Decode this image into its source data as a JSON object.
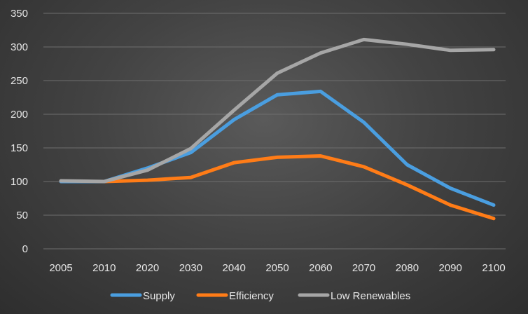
{
  "chart_data": {
    "type": "line",
    "title": "",
    "xlabel": "",
    "ylabel": "",
    "categories": [
      "2005",
      "2010",
      "2020",
      "2030",
      "2040",
      "2050",
      "2060",
      "2070",
      "2080",
      "2090",
      "2100"
    ],
    "ylim": [
      0,
      350
    ],
    "yticks": [
      0,
      50,
      100,
      150,
      200,
      250,
      300,
      350
    ],
    "grid": "horizontal",
    "legend_position": "bottom",
    "series": [
      {
        "name": "Supply",
        "color": "#4a9ee0",
        "values": [
          100,
          100,
          120,
          143,
          192,
          229,
          234,
          188,
          125,
          90,
          65
        ]
      },
      {
        "name": "Efficiency",
        "color": "#ff7c17",
        "values": [
          100,
          100,
          102,
          106,
          128,
          136,
          138,
          122,
          95,
          65,
          45
        ]
      },
      {
        "name": "Low Renewables",
        "color": "#a6a6a6",
        "values": [
          101,
          100,
          117,
          149,
          206,
          261,
          291,
          311,
          304,
          295,
          296
        ]
      }
    ]
  }
}
